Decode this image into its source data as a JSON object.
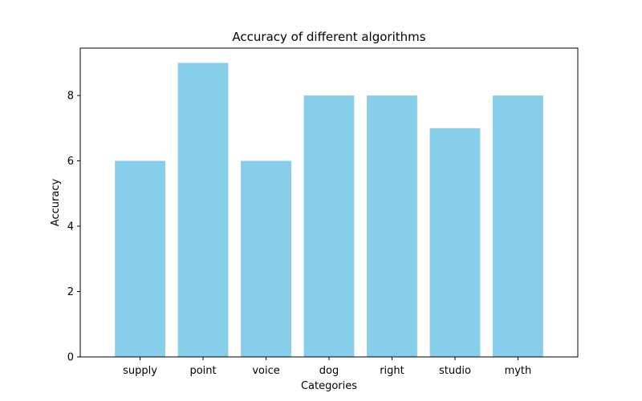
{
  "chart_data": {
    "type": "bar",
    "title": "Accuracy of different algorithms",
    "xlabel": "Categories",
    "ylabel": "Accuracy",
    "categories": [
      "supply",
      "point",
      "voice",
      "dog",
      "right",
      "studio",
      "myth"
    ],
    "values": [
      6,
      9,
      6,
      8,
      8,
      7,
      8
    ],
    "ylim": [
      0,
      9.45
    ],
    "yticks": [
      0,
      2,
      4,
      6,
      8
    ],
    "grid": false,
    "bar_color": "#87CEEB"
  }
}
